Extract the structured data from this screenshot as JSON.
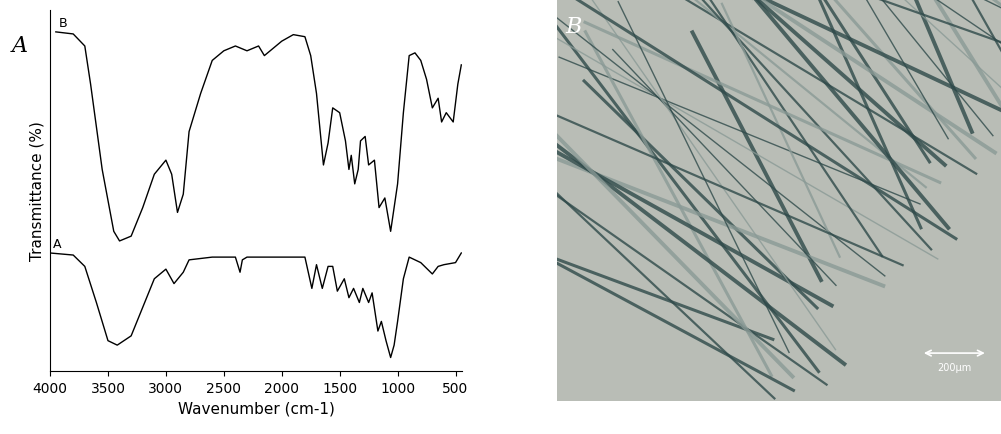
{
  "chart_data": [
    {
      "type": "line",
      "title": "A",
      "x_label": "Wavenumber (cm-1)",
      "y_label": "Transmittance (%)",
      "xlim": [
        4000,
        440
      ],
      "xticks": [
        4000,
        3500,
        3000,
        2500,
        2000,
        1500,
        1000,
        500
      ],
      "ylim": [
        0,
        105
      ],
      "tick_labels": "x",
      "series": [
        {
          "name": "A",
          "color": "#000000",
          "x": [
            4000,
            3800,
            3700,
            3600,
            3500,
            3420,
            3300,
            3200,
            3100,
            3000,
            2930,
            2850,
            2800,
            2600,
            2400,
            2360,
            2340,
            2300,
            2000,
            1800,
            1740,
            1700,
            1650,
            1600,
            1560,
            1520,
            1460,
            1420,
            1380,
            1330,
            1300,
            1250,
            1220,
            1170,
            1140,
            1100,
            1060,
            1030,
            1000,
            950,
            900,
            800,
            700,
            650,
            600,
            500,
            450
          ],
          "values": [
            34.3,
            33.7,
            30.4,
            19.9,
            8.8,
            7.5,
            10.2,
            18.5,
            26.8,
            29.6,
            25.4,
            28.7,
            32.3,
            33.1,
            33.1,
            28.7,
            32.3,
            33.1,
            33.1,
            33.1,
            24.0,
            30.9,
            24.0,
            30.4,
            30.4,
            23.2,
            26.8,
            21.3,
            24.0,
            19.9,
            24.0,
            19.9,
            22.7,
            11.6,
            14.4,
            8.8,
            3.9,
            7.5,
            14.4,
            26.8,
            33.1,
            31.5,
            28.2,
            30.4,
            30.9,
            31.5,
            34.3
          ]
        },
        {
          "name": "B",
          "color": "#000000",
          "x": [
            3950,
            3800,
            3700,
            3650,
            3550,
            3450,
            3400,
            3300,
            3200,
            3100,
            3000,
            2950,
            2900,
            2850,
            2800,
            2700,
            2600,
            2500,
            2400,
            2300,
            2200,
            2150,
            2100,
            2000,
            1900,
            1800,
            1750,
            1700,
            1640,
            1600,
            1560,
            1500,
            1450,
            1420,
            1400,
            1370,
            1340,
            1320,
            1280,
            1250,
            1200,
            1160,
            1110,
            1060,
            1030,
            1000,
            950,
            900,
            850,
            800,
            750,
            700,
            650,
            620,
            580,
            520,
            480,
            450
          ],
          "values": [
            98.6,
            98.0,
            94.5,
            83.4,
            58.6,
            40.6,
            37.8,
            39.2,
            47.5,
            57.2,
            61.3,
            57.2,
            46.1,
            51.4,
            69.6,
            80.7,
            90.3,
            93.1,
            94.5,
            93.1,
            94.5,
            91.7,
            93.1,
            95.9,
            97.8,
            97.2,
            91.7,
            80.7,
            59.9,
            66.3,
            76.5,
            75.1,
            66.9,
            58.6,
            62.7,
            54.4,
            58.6,
            66.9,
            68.2,
            59.9,
            61.3,
            47.5,
            50.3,
            40.6,
            47.5,
            54.4,
            75.1,
            91.7,
            92.5,
            90.3,
            84.8,
            76.5,
            79.3,
            72.4,
            75.1,
            72.4,
            83.4,
            89.0
          ]
        }
      ]
    },
    {
      "type": "image",
      "title": "B",
      "annotations": [
        "200μm"
      ]
    }
  ]
}
